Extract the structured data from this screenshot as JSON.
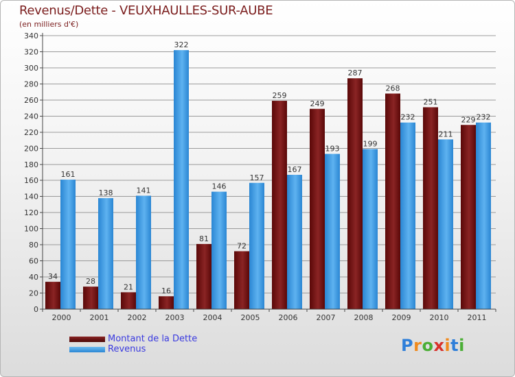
{
  "chart_data": {
    "type": "bar",
    "title": "Revenus/Dette - VEUXHAULLES-SUR-AUBE",
    "subtitle": "(en milliers d'€)",
    "categories": [
      "2000",
      "2001",
      "2002",
      "2003",
      "2004",
      "2005",
      "2006",
      "2007",
      "2008",
      "2009",
      "2010",
      "2011"
    ],
    "series": [
      {
        "name": "Montant de la Dette",
        "color": "#7a1414",
        "values": [
          34,
          28,
          21,
          16,
          81,
          72,
          259,
          249,
          287,
          268,
          251,
          229
        ]
      },
      {
        "name": "Revenus",
        "color": "#3d9be3",
        "values": [
          161,
          138,
          141,
          322,
          146,
          157,
          167,
          193,
          199,
          232,
          211,
          232
        ]
      }
    ],
    "ylim": [
      0,
      340
    ],
    "yticks": [
      0,
      20,
      40,
      60,
      80,
      100,
      120,
      140,
      160,
      180,
      200,
      220,
      240,
      260,
      280,
      300,
      320,
      340
    ],
    "grid": true,
    "legend": "bottom-left"
  },
  "logo": {
    "letters": [
      "P",
      "r",
      "o",
      "x",
      "i",
      "t",
      "i"
    ],
    "colors": [
      "#2f7fd9",
      "#f08a1d",
      "#4aae35",
      "#d8312a",
      "#f08a1d",
      "#2f7fd9",
      "#4aae35"
    ]
  }
}
